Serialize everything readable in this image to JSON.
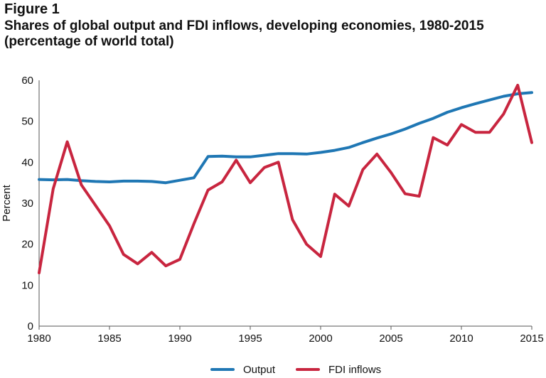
{
  "figure_label": "Figure 1",
  "chart_data": {
    "type": "line",
    "title": "Shares of global output and FDI inflows, developing economies, 1980-2015",
    "subtitle": "(percentage of world total)",
    "xlabel": "",
    "ylabel": "Percent",
    "xlim": [
      1980,
      2015
    ],
    "ylim": [
      0,
      60
    ],
    "x_ticks": [
      1980,
      1985,
      1990,
      1995,
      2000,
      2005,
      2010,
      2015
    ],
    "y_ticks": [
      0,
      10,
      20,
      30,
      40,
      50,
      60
    ],
    "grid": false,
    "legend_position": "bottom-center",
    "x": [
      1980,
      1981,
      1982,
      1983,
      1984,
      1985,
      1986,
      1987,
      1988,
      1989,
      1990,
      1991,
      1992,
      1993,
      1994,
      1995,
      1996,
      1997,
      1998,
      1999,
      2000,
      2001,
      2002,
      2003,
      2004,
      2005,
      2006,
      2007,
      2008,
      2009,
      2010,
      2011,
      2012,
      2013,
      2014,
      2015
    ],
    "series": [
      {
        "name": "Output",
        "color": "#1f77b4",
        "values": [
          35.8,
          35.7,
          35.8,
          35.5,
          35.3,
          35.2,
          35.4,
          35.4,
          35.3,
          35.0,
          35.6,
          36.2,
          41.4,
          41.5,
          41.3,
          41.3,
          41.7,
          42.1,
          42.1,
          42.0,
          42.4,
          42.9,
          43.6,
          44.8,
          45.9,
          46.9,
          48.1,
          49.5,
          50.7,
          52.2,
          53.3,
          54.3,
          55.2,
          56.1,
          56.7,
          57.0
        ]
      },
      {
        "name": "FDI inflows",
        "color": "#c8253f",
        "values": [
          13.0,
          33.5,
          45.0,
          34.5,
          29.5,
          24.5,
          17.5,
          15.2,
          18.0,
          14.7,
          16.3,
          25.0,
          33.2,
          35.2,
          40.5,
          35.0,
          38.7,
          40.0,
          26.0,
          20.0,
          17.0,
          32.2,
          29.3,
          38.2,
          42.0,
          37.5,
          32.3,
          31.7,
          46.0,
          44.2,
          49.2,
          47.3,
          47.3,
          51.8,
          58.8,
          44.8
        ]
      }
    ]
  }
}
